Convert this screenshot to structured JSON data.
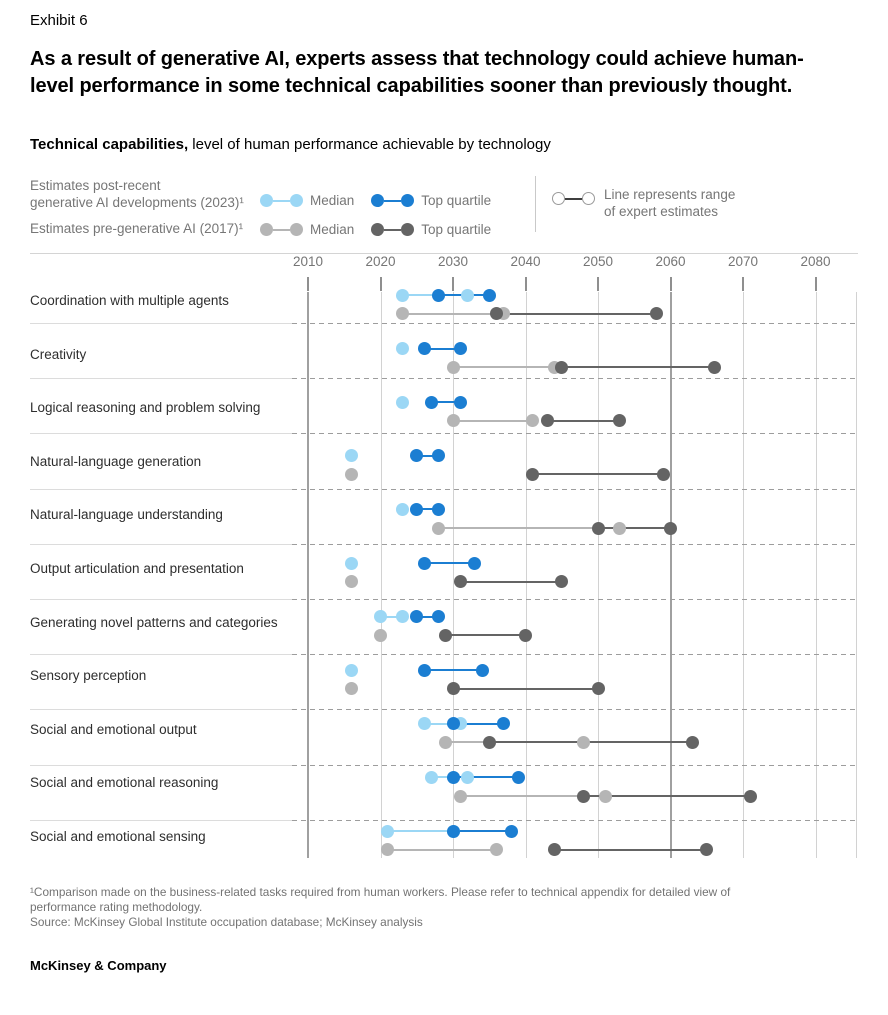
{
  "header": {
    "exhibit_label": "Exhibit 6",
    "title": "As a result of generative AI, experts assess that technology could achieve human-level performance in some technical capabilities sooner than previously thought.",
    "subtitle_bold": "Technical capabilities,",
    "subtitle_rest": " level of human performance achievable by technology"
  },
  "legend": {
    "post_label_line1": "Estimates post-recent",
    "post_label_line2": "generative AI developments (2023)¹",
    "pre_label": "Estimates pre-generative AI (2017)¹",
    "median_label": "Median",
    "top_quartile_label": "Top quartile",
    "range_note_line1": "Line represents range",
    "range_note_line2": "of expert estimates"
  },
  "colors": {
    "light_blue": "#9bd7f5",
    "dark_blue": "#1b7ed2",
    "light_gray": "#b5b5b5",
    "dark_gray": "#646464",
    "grid": "#d2d2d2",
    "grid_emphasis": "#a0a0a0",
    "axis_tick": "#8f8f8f",
    "separator_dash": "#9d9d9d",
    "label_underline": "#dcdcdc",
    "text_gray": "#767676"
  },
  "chart_data": {
    "type": "dumbbell-range",
    "title": "Technical capabilities, level of human performance achievable by technology",
    "x_axis": {
      "unit": "year",
      "min": 2010,
      "max": 2080,
      "ticks": [
        2010,
        2020,
        2030,
        2040,
        2050,
        2060,
        2070,
        2080
      ],
      "emphasized_gridlines": [
        2010,
        2060
      ]
    },
    "series": [
      {
        "key": "post_median",
        "label": "Estimates post-recent generative AI developments (2023), Median",
        "color_key": "light_blue"
      },
      {
        "key": "post_top",
        "label": "Estimates post-recent generative AI developments (2023), Top quartile",
        "color_key": "dark_blue"
      },
      {
        "key": "pre_median",
        "label": "Estimates pre-generative AI (2017), Median",
        "color_key": "light_gray"
      },
      {
        "key": "pre_top",
        "label": "Estimates pre-generative AI (2017), Top quartile",
        "color_key": "dark_gray"
      }
    ],
    "range_meaning": "Line represents range of expert estimates",
    "rows": [
      {
        "label": "Coordination with multiple agents",
        "post_median": [
          2023,
          2032
        ],
        "post_top": [
          2028,
          2035
        ],
        "pre_median": [
          2023,
          2037
        ],
        "pre_top": [
          2036,
          2058
        ]
      },
      {
        "label": "Creativity",
        "post_median": [
          2023
        ],
        "post_top": [
          2026,
          2031
        ],
        "pre_median": [
          2030,
          2044
        ],
        "pre_top": [
          2045,
          2066
        ]
      },
      {
        "label": "Logical reasoning and problem solving",
        "post_median": [
          2023
        ],
        "post_top": [
          2027,
          2031
        ],
        "pre_median": [
          2030,
          2041
        ],
        "pre_top": [
          2043,
          2053
        ]
      },
      {
        "label": "Natural-language generation",
        "post_median": [
          2016
        ],
        "post_top": [
          2025,
          2028
        ],
        "pre_median": [
          2016
        ],
        "pre_top": [
          2041,
          2059
        ]
      },
      {
        "label": "Natural-language understanding",
        "post_median": [
          2023
        ],
        "post_top": [
          2025,
          2028
        ],
        "pre_median": [
          2028,
          2053
        ],
        "pre_top": [
          2050,
          2060
        ]
      },
      {
        "label": "Output articulation and presentation",
        "post_median": [
          2016
        ],
        "post_top": [
          2026,
          2033
        ],
        "pre_median": [
          2016
        ],
        "pre_top": [
          2031,
          2045
        ]
      },
      {
        "label": "Generating novel patterns and categories",
        "post_median": [
          2020,
          2023
        ],
        "post_top": [
          2025,
          2028
        ],
        "pre_median": [
          2020
        ],
        "pre_top": [
          2029,
          2040
        ]
      },
      {
        "label": "Sensory perception",
        "post_median": [
          2016
        ],
        "post_top": [
          2026,
          2034
        ],
        "pre_median": [
          2016
        ],
        "pre_top": [
          2030,
          2050
        ]
      },
      {
        "label": "Social and emotional output",
        "post_median": [
          2026,
          2031
        ],
        "post_top": [
          2030,
          2037
        ],
        "pre_median": [
          2029,
          2048
        ],
        "pre_top": [
          2035,
          2063
        ]
      },
      {
        "label": "Social and emotional reasoning",
        "post_median": [
          2027,
          2032
        ],
        "post_top": [
          2030,
          2039
        ],
        "pre_median": [
          2031,
          2051
        ],
        "pre_top": [
          2048,
          2071
        ]
      },
      {
        "label": "Social and emotional sensing",
        "post_median": [
          2021,
          2030
        ],
        "post_top": [
          2030,
          2038
        ],
        "pre_median": [
          2021,
          2036
        ],
        "pre_top": [
          2044,
          2065
        ]
      }
    ]
  },
  "footnotes": {
    "note1": "¹Comparison made on the business-related tasks required from human workers. Please refer to technical appendix for detailed view of performance rating methodology.",
    "source": "Source: McKinsey Global Institute occupation database; McKinsey analysis"
  },
  "footer": {
    "brand": "McKinsey & Company"
  }
}
